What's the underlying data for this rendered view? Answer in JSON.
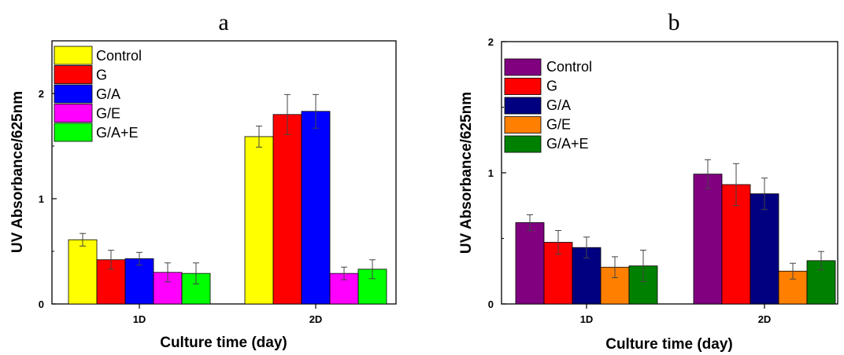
{
  "chart_data": [
    {
      "type": "bar",
      "title": "a",
      "xlabel": "Culture time (day)",
      "ylabel": "UV Absorbance/625nm",
      "categories": [
        "1D",
        "2D"
      ],
      "ylim": [
        0,
        2.5
      ],
      "yticks": [
        0,
        1,
        2
      ],
      "legend_position": "top-left",
      "series": [
        {
          "name": "Control",
          "color": "#ffff00",
          "values": [
            0.61,
            1.59
          ],
          "errors": [
            0.06,
            0.1
          ]
        },
        {
          "name": "G",
          "color": "#ff0000",
          "values": [
            0.42,
            1.8
          ],
          "errors": [
            0.09,
            0.19
          ]
        },
        {
          "name": "G/A",
          "color": "#0000ff",
          "values": [
            0.43,
            1.83
          ],
          "errors": [
            0.06,
            0.16
          ]
        },
        {
          "name": "G/E",
          "color": "#ff00ff",
          "values": [
            0.3,
            0.29
          ],
          "errors": [
            0.09,
            0.06
          ]
        },
        {
          "name": "G/A+E",
          "color": "#00ff00",
          "values": [
            0.29,
            0.33
          ],
          "errors": [
            0.1,
            0.09
          ]
        }
      ]
    },
    {
      "type": "bar",
      "title": "b",
      "xlabel": "Culture time (day)",
      "ylabel": "UV Absorbance/625nm",
      "categories": [
        "1D",
        "2D"
      ],
      "ylim": [
        0,
        2
      ],
      "yticks": [
        0,
        1,
        2
      ],
      "legend_position": "top-left",
      "series": [
        {
          "name": "Control",
          "color": "#800080",
          "values": [
            0.62,
            0.99
          ],
          "errors": [
            0.06,
            0.11
          ]
        },
        {
          "name": "G",
          "color": "#ff0000",
          "values": [
            0.47,
            0.91
          ],
          "errors": [
            0.09,
            0.16
          ]
        },
        {
          "name": "G/A",
          "color": "#000080",
          "values": [
            0.43,
            0.84
          ],
          "errors": [
            0.08,
            0.12
          ]
        },
        {
          "name": "G/E",
          "color": "#ff8000",
          "values": [
            0.28,
            0.25
          ],
          "errors": [
            0.08,
            0.06
          ]
        },
        {
          "name": "G/A+E",
          "color": "#008000",
          "values": [
            0.29,
            0.33
          ],
          "errors": [
            0.12,
            0.07
          ]
        }
      ]
    }
  ]
}
